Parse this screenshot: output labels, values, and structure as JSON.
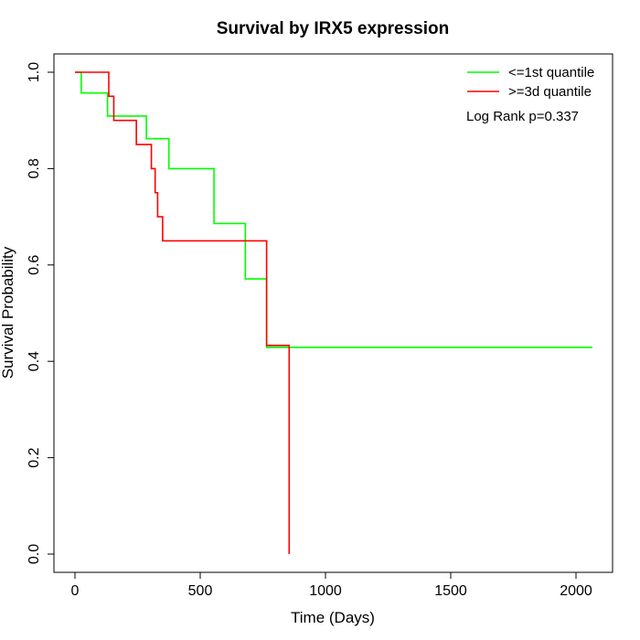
{
  "chart_data": {
    "type": "line",
    "title": "Survival by IRX5 expression",
    "xlabel": "Time (Days)",
    "ylabel": "Survival Probability",
    "xlim": [
      0,
      2070
    ],
    "ylim": [
      0,
      1
    ],
    "x_ticks": [
      0,
      500,
      1000,
      1500,
      2000
    ],
    "y_ticks": [
      0.0,
      0.2,
      0.4,
      0.6,
      0.8,
      1.0
    ],
    "x_tick_labels": [
      "0",
      "500",
      "1000",
      "1500",
      "2000"
    ],
    "y_tick_labels": [
      "0.0",
      "0.2",
      "0.4",
      "0.6",
      "0.8",
      "1.0"
    ],
    "step": true,
    "legend_position": "top-right",
    "annotation": "Log Rank p=0.337",
    "series": [
      {
        "name": "<=1st quantile",
        "color": "#00ff00",
        "x": [
          0,
          25,
          130,
          285,
          375,
          555,
          680,
          765,
          2065
        ],
        "y": [
          1.0,
          0.957,
          0.909,
          0.862,
          0.8,
          0.686,
          0.571,
          0.429,
          0.429
        ]
      },
      {
        "name": ">=3d quantile",
        "color": "#ff0000",
        "x": [
          0,
          135,
          155,
          245,
          305,
          320,
          330,
          350,
          765,
          855,
          855
        ],
        "y": [
          1.0,
          0.95,
          0.9,
          0.85,
          0.8,
          0.75,
          0.7,
          0.65,
          0.433,
          0.0,
          0.0
        ]
      }
    ]
  }
}
